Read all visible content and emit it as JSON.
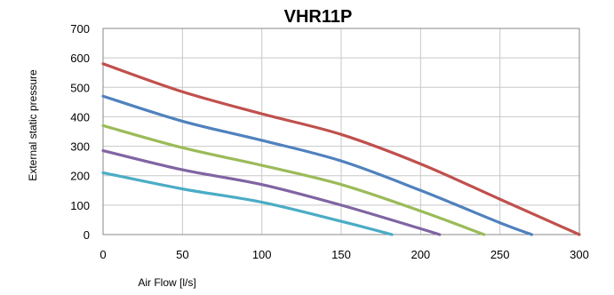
{
  "chart_data": {
    "type": "line",
    "title": "VHR11P",
    "xlabel": "Air Flow [l/s]",
    "ylabel": "External static pressure",
    "xlim": [
      0,
      300
    ],
    "ylim": [
      0,
      700
    ],
    "xticks": [
      0,
      50,
      100,
      150,
      200,
      250,
      300
    ],
    "yticks": [
      0,
      100,
      200,
      300,
      400,
      500,
      600,
      700
    ],
    "grid": true,
    "legend": "none",
    "series": [
      {
        "color": "#c0504d",
        "points": [
          [
            0,
            580
          ],
          [
            50,
            485
          ],
          [
            100,
            410
          ],
          [
            150,
            340
          ],
          [
            200,
            240
          ],
          [
            250,
            120
          ],
          [
            300,
            0
          ]
        ]
      },
      {
        "color": "#4f81bd",
        "points": [
          [
            0,
            470
          ],
          [
            50,
            385
          ],
          [
            100,
            320
          ],
          [
            150,
            250
          ],
          [
            200,
            150
          ],
          [
            250,
            40
          ],
          [
            270,
            0
          ]
        ]
      },
      {
        "color": "#9bbb59",
        "points": [
          [
            0,
            370
          ],
          [
            50,
            295
          ],
          [
            100,
            235
          ],
          [
            150,
            170
          ],
          [
            200,
            80
          ],
          [
            240,
            0
          ]
        ]
      },
      {
        "color": "#8064a2",
        "points": [
          [
            0,
            285
          ],
          [
            50,
            220
          ],
          [
            100,
            170
          ],
          [
            150,
            100
          ],
          [
            200,
            20
          ],
          [
            212,
            0
          ]
        ]
      },
      {
        "color": "#4bacc6",
        "points": [
          [
            0,
            210
          ],
          [
            50,
            155
          ],
          [
            100,
            110
          ],
          [
            150,
            45
          ],
          [
            182,
            0
          ]
        ]
      }
    ]
  }
}
